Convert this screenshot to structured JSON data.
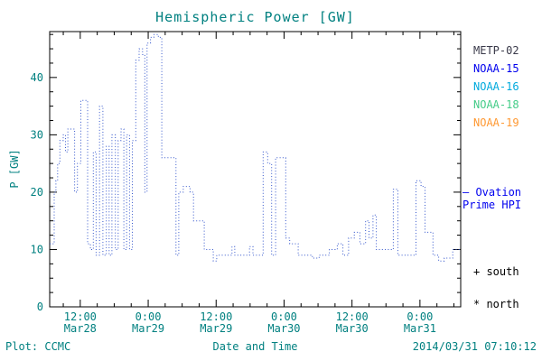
{
  "colors": {
    "text": "#008080",
    "axis": "#000000",
    "background": "#ffffff"
  },
  "header": {
    "title": "Hemispheric Power [GW]"
  },
  "footer": {
    "credit": "Plot: CCMC",
    "timestamp": "2014/03/31 07:10:12"
  },
  "chart_data": {
    "type": "line",
    "step": true,
    "line_style": "dotted",
    "title": "Hemispheric Power [GW]",
    "xlabel": "Date and Time",
    "ylabel": "P [GW]",
    "xlim": [
      6.6,
      79.2
    ],
    "ylim": [
      0,
      48
    ],
    "yticks": [
      0,
      10,
      20,
      30,
      40
    ],
    "y_minor_step": 2.5,
    "x_minor_step": 3,
    "xticks": [
      {
        "t": 12,
        "time": "12:00",
        "date": "Mar28"
      },
      {
        "t": 24,
        "time": "0:00",
        "date": "Mar29"
      },
      {
        "t": 36,
        "time": "12:00",
        "date": "Mar29"
      },
      {
        "t": 48,
        "time": "0:00",
        "date": "Mar30"
      },
      {
        "t": 60,
        "time": "12:00",
        "date": "Mar30"
      },
      {
        "t": 72,
        "time": "0:00",
        "date": "Mar31"
      }
    ],
    "series": [
      {
        "name": "Hemispheric Power HPI",
        "color": "#3355cc",
        "points": [
          [
            6.6,
            11
          ],
          [
            7.4,
            20
          ],
          [
            7.7,
            22
          ],
          [
            8.0,
            25
          ],
          [
            8.4,
            29
          ],
          [
            9.0,
            30
          ],
          [
            9.4,
            27
          ],
          [
            9.8,
            31
          ],
          [
            10.6,
            31
          ],
          [
            11.0,
            20
          ],
          [
            11.5,
            25
          ],
          [
            12.1,
            36
          ],
          [
            12.9,
            36
          ],
          [
            13.3,
            11
          ],
          [
            13.8,
            10
          ],
          [
            14.3,
            27
          ],
          [
            14.8,
            9
          ],
          [
            15.4,
            35
          ],
          [
            16.0,
            9
          ],
          [
            16.6,
            28
          ],
          [
            17.1,
            9
          ],
          [
            17.6,
            30
          ],
          [
            18.2,
            10
          ],
          [
            18.7,
            29
          ],
          [
            19.2,
            31
          ],
          [
            19.7,
            10
          ],
          [
            20.2,
            30
          ],
          [
            20.7,
            10
          ],
          [
            21.2,
            29
          ],
          [
            21.8,
            43
          ],
          [
            22.4,
            45
          ],
          [
            23.0,
            44
          ],
          [
            23.4,
            20
          ],
          [
            23.8,
            46
          ],
          [
            24.4,
            47
          ],
          [
            25.0,
            47.5
          ],
          [
            25.8,
            47
          ],
          [
            26.4,
            26
          ],
          [
            27.9,
            26
          ],
          [
            28.9,
            9
          ],
          [
            29.4,
            20
          ],
          [
            30.2,
            21
          ],
          [
            31.4,
            20
          ],
          [
            32.0,
            15
          ],
          [
            33.4,
            15
          ],
          [
            33.9,
            10
          ],
          [
            34.9,
            10
          ],
          [
            35.5,
            8
          ],
          [
            36.1,
            9
          ],
          [
            37.8,
            9
          ],
          [
            38.8,
            10.5
          ],
          [
            39.3,
            9
          ],
          [
            40.9,
            9
          ],
          [
            41.9,
            10.5
          ],
          [
            42.5,
            9
          ],
          [
            43.7,
            9
          ],
          [
            44.3,
            27
          ],
          [
            45.1,
            25
          ],
          [
            45.8,
            9
          ],
          [
            46.5,
            26
          ],
          [
            47.9,
            26
          ],
          [
            48.3,
            12
          ],
          [
            49.0,
            11
          ],
          [
            50.5,
            9
          ],
          [
            52.0,
            9
          ],
          [
            53.0,
            8.5
          ],
          [
            54.2,
            9
          ],
          [
            56.0,
            10
          ],
          [
            57.4,
            11
          ],
          [
            58.4,
            9
          ],
          [
            59.4,
            12
          ],
          [
            60.4,
            13
          ],
          [
            61.4,
            11
          ],
          [
            62.4,
            15
          ],
          [
            63.0,
            12
          ],
          [
            63.7,
            16
          ],
          [
            64.3,
            10
          ],
          [
            66.0,
            10
          ],
          [
            67.3,
            20.5
          ],
          [
            68.1,
            9
          ],
          [
            69.9,
            9
          ],
          [
            71.3,
            22
          ],
          [
            72.2,
            21
          ],
          [
            72.9,
            13
          ],
          [
            74.3,
            9
          ],
          [
            75.3,
            8
          ],
          [
            76.3,
            8.5
          ],
          [
            77.8,
            10
          ],
          [
            79.2,
            10
          ]
        ]
      }
    ],
    "legend": [
      {
        "label": "METP-02",
        "color": "#3a3a4a"
      },
      {
        "label": "NOAA-15",
        "color": "#0000ee"
      },
      {
        "label": "NOAA-16",
        "color": "#00aadd"
      },
      {
        "label": "NOAA-18",
        "color": "#44cc88"
      },
      {
        "label": "NOAA-19",
        "color": "#ff9933"
      }
    ],
    "ovation_legend": {
      "line1": "— Ovation",
      "line2": "Prime HPI",
      "color": "#0000ee"
    },
    "marker_legend": [
      {
        "label": "+ south"
      },
      {
        "label": "* north"
      }
    ]
  }
}
